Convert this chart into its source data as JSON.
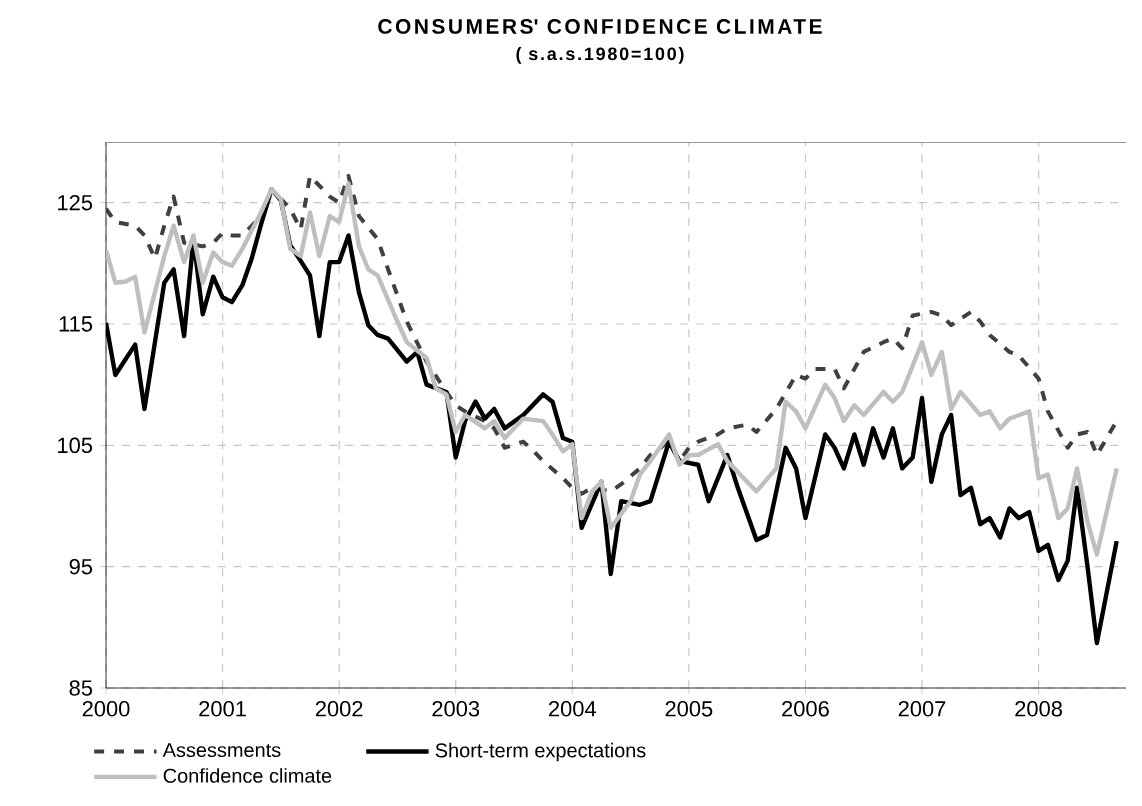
{
  "chart_data": {
    "type": "line",
    "title": "CONSUMERS' CONFIDENCE CLIMATE",
    "subtitle": "( s.a.s.1980=100)",
    "xlim": [
      "2000-01",
      "2008-10"
    ],
    "xticks": [
      "2000",
      "2001",
      "2002",
      "2003",
      "2004",
      "2005",
      "2006",
      "2007",
      "2008"
    ],
    "ylim": [
      85,
      130
    ],
    "yticks": [
      85,
      95,
      105,
      115,
      125
    ],
    "grid": true,
    "legend": "bottom",
    "marker": "none",
    "series": [
      {
        "name": "Assessments",
        "color": "#404040",
        "line_style": "dashed",
        "x": [
          "2000-01",
          "2000-02",
          "2000-04",
          "2000-05",
          "2000-06",
          "2000-07",
          "2000-08",
          "2000-09",
          "2000-11",
          "2000-12",
          "2001-01",
          "2001-02",
          "2001-03",
          "2001-05",
          "2001-06",
          "2001-08",
          "2001-09",
          "2001-10",
          "2001-12",
          "2002-01",
          "2002-02",
          "2002-03",
          "2002-05",
          "2002-06",
          "2002-08",
          "2002-10",
          "2002-12",
          "2003-01",
          "2003-02",
          "2003-04",
          "2003-05",
          "2003-06",
          "2003-08",
          "2003-09",
          "2003-10",
          "2003-12",
          "2004-01",
          "2004-02",
          "2004-03",
          "2004-05",
          "2004-06",
          "2004-08",
          "2004-09",
          "2004-11",
          "2004-12",
          "2005-01",
          "2005-02",
          "2005-04",
          "2005-05",
          "2005-07",
          "2005-08",
          "2005-10",
          "2005-12",
          "2006-01",
          "2006-02",
          "2006-04",
          "2006-05",
          "2006-06",
          "2006-07",
          "2006-09",
          "2006-10",
          "2006-11",
          "2006-12",
          "2007-02",
          "2007-03",
          "2007-04",
          "2007-06",
          "2007-07",
          "2007-08",
          "2007-10",
          "2007-11",
          "2008-01",
          "2008-02",
          "2008-04",
          "2008-05",
          "2008-06",
          "2008-07",
          "2008-09"
        ],
        "values": [
          124.5,
          123.4,
          123.1,
          122.3,
          120.4,
          123.1,
          125.5,
          121.7,
          121.4,
          121.7,
          122.5,
          122.3,
          122.3,
          123.9,
          126.1,
          124.5,
          122.8,
          127.2,
          125.5,
          125,
          127.2,
          123.9,
          122,
          119.5,
          115.2,
          111.9,
          109.4,
          108.3,
          107.8,
          107,
          106.4,
          104.8,
          105.3,
          104.5,
          103.7,
          102.3,
          101.5,
          101,
          101.5,
          101.2,
          101.8,
          103.1,
          104.2,
          105.3,
          103.7,
          104.8,
          105.3,
          105.9,
          106.4,
          106.7,
          106.1,
          108,
          110.8,
          110.5,
          111.3,
          111.3,
          109.7,
          111.3,
          112.7,
          113.5,
          113.8,
          113,
          115.7,
          116,
          115.7,
          114.9,
          116,
          115.2,
          114.1,
          112.7,
          112.4,
          110.5,
          107.8,
          104.8,
          105.9,
          106.1,
          104.2,
          107
        ]
      },
      {
        "name": "Short-term expectations",
        "color": "#000000",
        "line_style": "solid",
        "x": [
          "2000-01",
          "2000-02",
          "2000-04",
          "2000-05",
          "2000-07",
          "2000-08",
          "2000-09",
          "2000-10",
          "2000-11",
          "2000-12",
          "2001-01",
          "2001-02",
          "2001-03",
          "2001-04",
          "2001-05",
          "2001-06",
          "2001-07",
          "2001-08",
          "2001-09",
          "2001-10",
          "2001-11",
          "2001-12",
          "2002-01",
          "2002-02",
          "2002-03",
          "2002-04",
          "2002-05",
          "2002-06",
          "2002-08",
          "2002-09",
          "2002-10",
          "2002-12",
          "2003-01",
          "2003-02",
          "2003-03",
          "2003-04",
          "2003-05",
          "2003-06",
          "2003-08",
          "2003-10",
          "2003-11",
          "2003-12",
          "2004-01",
          "2004-02",
          "2004-04",
          "2004-05",
          "2004-06",
          "2004-08",
          "2004-09",
          "2004-11",
          "2004-12",
          "2005-02",
          "2005-03",
          "2005-05",
          "2005-06",
          "2005-08",
          "2005-09",
          "2005-11",
          "2005-12",
          "2006-01",
          "2006-03",
          "2006-04",
          "2006-05",
          "2006-06",
          "2006-07",
          "2006-08",
          "2006-09",
          "2006-10",
          "2006-11",
          "2006-12",
          "2007-01",
          "2007-02",
          "2007-03",
          "2007-04",
          "2007-05",
          "2007-06",
          "2007-07",
          "2007-08",
          "2007-09",
          "2007-10",
          "2007-11",
          "2007-12",
          "2008-01",
          "2008-02",
          "2008-03",
          "2008-04",
          "2008-05",
          "2008-06",
          "2008-07",
          "2008-09"
        ],
        "values": [
          115.1,
          110.8,
          113.3,
          108,
          118.4,
          119.5,
          114,
          122,
          115.8,
          118.9,
          117.2,
          116.8,
          118.2,
          120.4,
          123.2,
          126.1,
          125.2,
          121.5,
          120.2,
          119,
          114,
          120.1,
          120.1,
          122.3,
          117.6,
          114.9,
          114.1,
          113.8,
          111.9,
          112.7,
          110,
          109.4,
          104,
          107,
          108.6,
          107.2,
          108,
          106.4,
          107.5,
          109.2,
          108.6,
          105.6,
          105.3,
          98.2,
          102,
          94.4,
          100.4,
          100.1,
          100.4,
          105.3,
          103.7,
          103.4,
          100.4,
          104.2,
          101.5,
          97.2,
          97.6,
          104.8,
          103.1,
          99,
          105.9,
          104.8,
          103.1,
          105.9,
          103.4,
          106.4,
          104,
          106.4,
          103.1,
          104,
          108.9,
          102,
          105.9,
          107.5,
          100.9,
          101.5,
          98.5,
          99,
          97.4,
          99.8,
          99,
          99.5,
          96.3,
          96.8,
          93.9,
          95.5,
          101.5,
          95,
          88.7,
          97.1
        ]
      },
      {
        "name": "Confidence climate",
        "color": "#bfbfbf",
        "line_style": "solid",
        "x": [
          "2000-01",
          "2000-02",
          "2000-03",
          "2000-04",
          "2000-05",
          "2000-07",
          "2000-08",
          "2000-09",
          "2000-10",
          "2000-11",
          "2000-12",
          "2001-01",
          "2001-02",
          "2001-03",
          "2001-05",
          "2001-06",
          "2001-07",
          "2001-08",
          "2001-09",
          "2001-10",
          "2001-11",
          "2001-12",
          "2002-01",
          "2002-02",
          "2002-03",
          "2002-04",
          "2002-05",
          "2002-07",
          "2002-08",
          "2002-10",
          "2002-11",
          "2002-12",
          "2003-01",
          "2003-02",
          "2003-04",
          "2003-05",
          "2003-06",
          "2003-08",
          "2003-10",
          "2003-11",
          "2003-12",
          "2004-01",
          "2004-02",
          "2004-03",
          "2004-04",
          "2004-05",
          "2004-07",
          "2004-08",
          "2004-09",
          "2004-11",
          "2004-12",
          "2005-01",
          "2005-02",
          "2005-04",
          "2005-05",
          "2005-07",
          "2005-08",
          "2005-10",
          "2005-11",
          "2005-12",
          "2006-01",
          "2006-03",
          "2006-04",
          "2006-05",
          "2006-06",
          "2006-07",
          "2006-09",
          "2006-10",
          "2006-11",
          "2007-01",
          "2007-02",
          "2007-03",
          "2007-04",
          "2007-05",
          "2007-07",
          "2007-08",
          "2007-09",
          "2007-10",
          "2007-12",
          "2008-01",
          "2008-02",
          "2008-03",
          "2008-04",
          "2008-05",
          "2008-06",
          "2008-07",
          "2008-09"
        ],
        "values": [
          121.1,
          118.4,
          118.5,
          118.9,
          114.3,
          120.6,
          123.1,
          120.1,
          122.3,
          118.4,
          120.9,
          120.1,
          119.8,
          121.2,
          124.2,
          126.1,
          125.3,
          121.2,
          120.6,
          124.2,
          120.6,
          123.9,
          123.4,
          126.6,
          121.4,
          119.5,
          119,
          115.2,
          113.5,
          112.2,
          109.7,
          109.2,
          106.1,
          107.5,
          106.4,
          107,
          105.6,
          107.2,
          107,
          105.9,
          104.5,
          105.1,
          99,
          101.2,
          102,
          98.2,
          100.4,
          102.6,
          103.7,
          105.9,
          103.4,
          104.2,
          104.2,
          105.1,
          103.7,
          102,
          101.2,
          103.1,
          108.6,
          107.8,
          106.4,
          110,
          108.9,
          107,
          108.3,
          107.5,
          109.4,
          108.6,
          109.4,
          113.5,
          110.8,
          112.7,
          108,
          109.4,
          107.5,
          107.8,
          106.4,
          107.2,
          107.8,
          102.3,
          102.6,
          99,
          99.8,
          103.1,
          98.7,
          96,
          103.1
        ]
      }
    ]
  }
}
